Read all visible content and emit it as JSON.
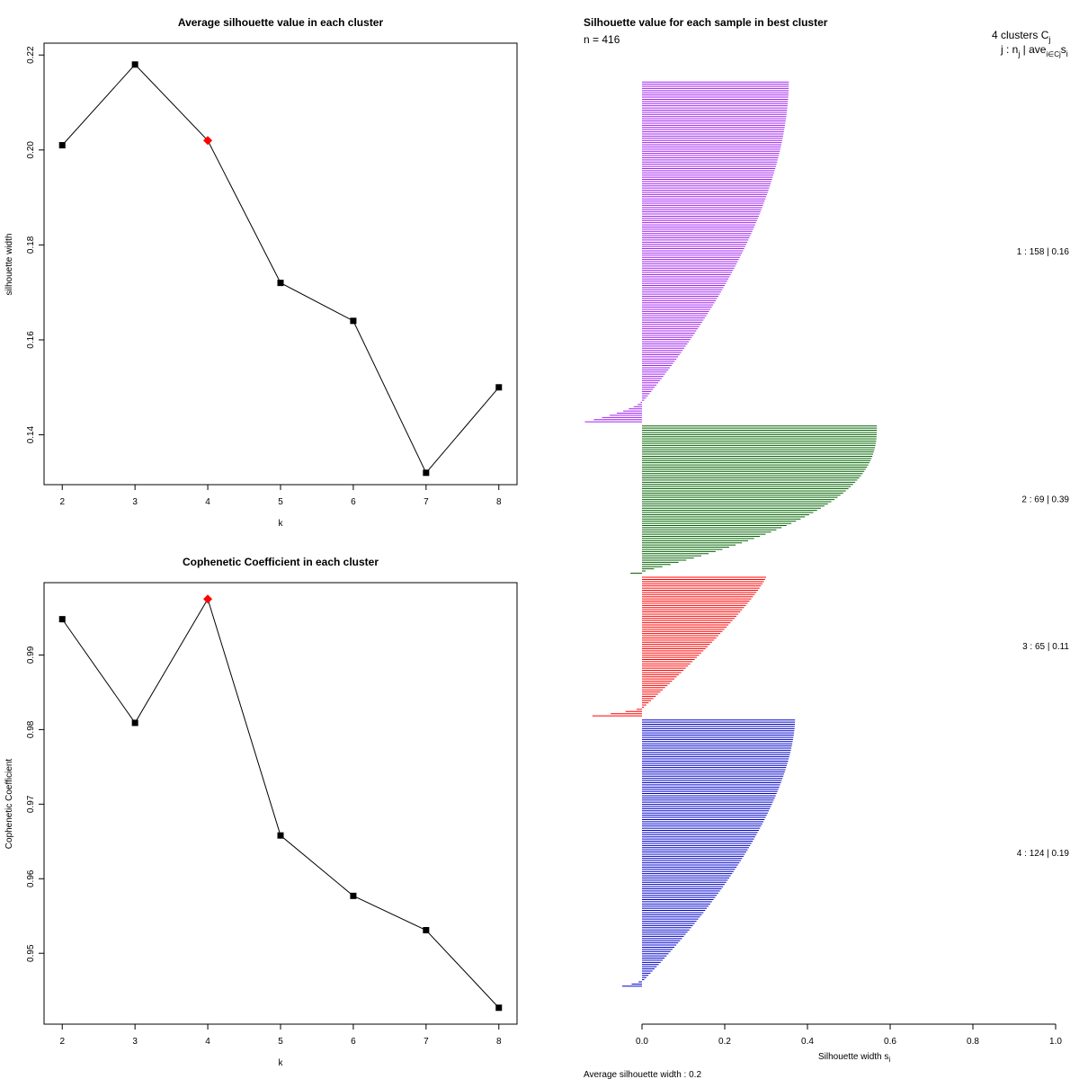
{
  "chart_data": [
    {
      "type": "line",
      "title": "Average silhouette value in each cluster",
      "xlabel": "k",
      "ylabel": "silhouette width",
      "x": [
        2,
        3,
        4,
        5,
        6,
        7,
        8
      ],
      "values": [
        0.201,
        0.218,
        0.202,
        0.172,
        0.164,
        0.132,
        0.15
      ],
      "highlight_k": 4,
      "highlight_color": "#ff0000",
      "xlim": [
        1.75,
        8.25
      ],
      "ylim": [
        0.1295,
        0.2225
      ],
      "x_ticks": [
        "2",
        "3",
        "4",
        "5",
        "6",
        "7",
        "8"
      ],
      "y_ticks": [
        "0.14",
        "0.16",
        "0.18",
        "0.20",
        "0.22"
      ]
    },
    {
      "type": "line",
      "title": "Cophenetic Coefficient in each cluster",
      "xlabel": "k",
      "ylabel": "Cophenetic Coefficient",
      "x": [
        2,
        3,
        4,
        5,
        6,
        7,
        8
      ],
      "values": [
        0.9948,
        0.9809,
        0.9975,
        0.9658,
        0.9577,
        0.9531,
        0.9427
      ],
      "highlight_k": 4,
      "highlight_color": "#ff0000",
      "xlim": [
        1.75,
        8.25
      ],
      "ylim": [
        0.9405,
        0.9997
      ],
      "x_ticks": [
        "2",
        "3",
        "4",
        "5",
        "6",
        "7",
        "8"
      ],
      "y_ticks": [
        "0.95",
        "0.96",
        "0.97",
        "0.98",
        "0.99"
      ]
    },
    {
      "type": "bar",
      "orientation": "horizontal",
      "title": "Silhouette value for each sample in best cluster",
      "n_label": "n = 416",
      "xlabel": "Silhouette width",
      "xlabel_sub": "i",
      "xlim": [
        0,
        1
      ],
      "x_ticks": [
        "0.0",
        "0.2",
        "0.4",
        "0.6",
        "0.8",
        "1.0"
      ],
      "legend_header": "4 clusters",
      "legend_cj": "C",
      "legend_cj_sub": "j",
      "legend_sub_header": "j : n",
      "legend_sub_header_mid": " | ave",
      "legend_sub_header_i": "i∈Cj",
      "legend_sub_header_end": "s",
      "legend_sub_header_si": "i",
      "average_text": "Average silhouette width : 0.2",
      "clusters": [
        {
          "id": 1,
          "label": "1 :  158  |  0.16",
          "n": 158,
          "avg": 0.16,
          "color": "#a020f0",
          "max": 0.355,
          "min": -0.138,
          "neg_count": 10,
          "shape": 0.55
        },
        {
          "id": 2,
          "label": "2 :  69  |  0.39",
          "n": 69,
          "avg": 0.39,
          "color": "#006400",
          "max": 0.568,
          "min": -0.028,
          "neg_count": 1,
          "shape": 0.4
        },
        {
          "id": 3,
          "label": "3 :  65  |  0.11",
          "n": 65,
          "avg": 0.11,
          "color": "#ff0000",
          "max": 0.3,
          "min": -0.12,
          "neg_count": 4,
          "shape": 0.85
        },
        {
          "id": 4,
          "label": "4 :  124  |  0.19",
          "n": 124,
          "avg": 0.19,
          "color": "#0000cd",
          "max": 0.37,
          "min": -0.048,
          "neg_count": 3,
          "shape": 0.6
        }
      ]
    }
  ]
}
